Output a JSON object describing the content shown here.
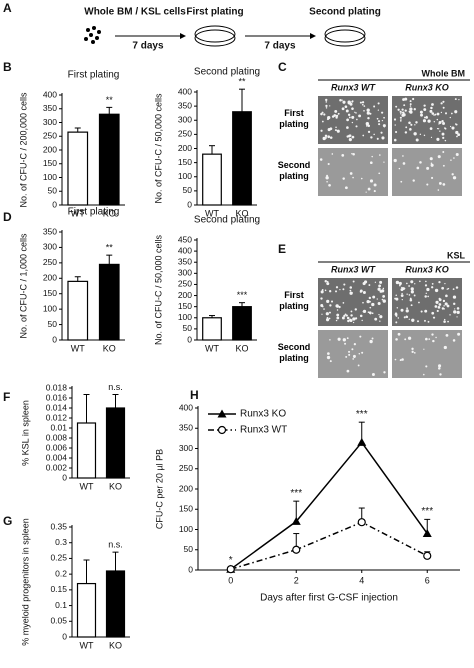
{
  "schema": {
    "label": "A",
    "start": "Whole BM / KSL cells",
    "step1": "7 days",
    "stage1": "First plating",
    "step2": "7 days",
    "stage2": "Second plating"
  },
  "image_panels": [
    {
      "label": "C",
      "title": "Whole BM",
      "columns": [
        "Runx3 WT",
        "Runx3 KO"
      ],
      "rows": [
        "First plating",
        "Second plating"
      ]
    },
    {
      "label": "E",
      "title": "KSL",
      "columns": [
        "Runx3 WT",
        "Runx3 KO"
      ],
      "rows": [
        "First plating",
        "Second plating"
      ]
    }
  ],
  "chart_data": [
    {
      "type": "bar",
      "label": "B",
      "title": "First plating",
      "ylabel": "No. of CFU-C / 200,000 cells",
      "categories": [
        "WT",
        "KO"
      ],
      "values": [
        265,
        330
      ],
      "errors": [
        15,
        25
      ],
      "colors": [
        "#ffffff",
        "#000000"
      ],
      "annotation": "**",
      "ylim": [
        0,
        400
      ],
      "yticks": [
        0,
        50,
        100,
        150,
        200,
        250,
        300,
        350,
        400
      ]
    },
    {
      "type": "bar",
      "title": "Second plating",
      "ylabel": "No. of CFU-C / 50,000 cells",
      "categories": [
        "WT",
        "KO"
      ],
      "values": [
        180,
        330
      ],
      "errors": [
        30,
        80
      ],
      "colors": [
        "#ffffff",
        "#000000"
      ],
      "annotation": "**",
      "ylim": [
        0,
        400
      ],
      "yticks": [
        0,
        50,
        100,
        150,
        200,
        250,
        300,
        350,
        400
      ]
    },
    {
      "type": "bar",
      "label": "D",
      "title": "First plating",
      "ylabel": "No. of CFU-C / 1,000 cells",
      "categories": [
        "WT",
        "KO"
      ],
      "values": [
        190,
        245
      ],
      "errors": [
        15,
        30
      ],
      "colors": [
        "#ffffff",
        "#000000"
      ],
      "annotation": "**",
      "ylim": [
        0,
        350
      ],
      "yticks": [
        0,
        50,
        100,
        150,
        200,
        250,
        300,
        350
      ]
    },
    {
      "type": "bar",
      "title": "Second plating",
      "ylabel": "No. of CFU-C / 50,000 cells",
      "categories": [
        "WT",
        "KO"
      ],
      "values": [
        100,
        150
      ],
      "errors": [
        10,
        18
      ],
      "colors": [
        "#ffffff",
        "#000000"
      ],
      "annotation": "***",
      "ylim": [
        0,
        450
      ],
      "yticks": [
        0,
        50,
        100,
        150,
        200,
        250,
        300,
        350,
        400,
        450
      ]
    },
    {
      "type": "bar",
      "label": "F",
      "ylabel": "% KSL in spleen",
      "categories": [
        "WT",
        "KO"
      ],
      "values": [
        0.011,
        0.014
      ],
      "errors": [
        0.0057,
        0.0027
      ],
      "colors": [
        "#ffffff",
        "#000000"
      ],
      "annotation": "n.s.",
      "ylim": [
        0,
        0.018
      ],
      "yticks": [
        0,
        0.002,
        0.004,
        0.006,
        0.008,
        0.01,
        0.012,
        0.014,
        0.016,
        0.018
      ]
    },
    {
      "type": "bar",
      "label": "G",
      "ylabel": "% myeloid progenitors in spleen",
      "categories": [
        "WT",
        "KO"
      ],
      "values": [
        0.17,
        0.21
      ],
      "errors": [
        0.075,
        0.06
      ],
      "colors": [
        "#ffffff",
        "#000000"
      ],
      "annotation": "n.s.",
      "ylim": [
        0,
        0.35
      ],
      "yticks": [
        0,
        0.05,
        0.1,
        0.15,
        0.2,
        0.25,
        0.3,
        0.35
      ]
    },
    {
      "type": "line",
      "label": "H",
      "ylabel": "CFU-C per 20 µl PB",
      "xlabel": "Days after first G-CSF injection",
      "x": [
        0,
        2,
        4,
        6
      ],
      "xlim": [
        -1,
        7
      ],
      "xticks": [
        0,
        2,
        4,
        6
      ],
      "ylim": [
        0,
        400
      ],
      "yticks": [
        0,
        50,
        100,
        150,
        200,
        250,
        300,
        350,
        400
      ],
      "annotations": [
        "*",
        "***",
        "***",
        "***"
      ],
      "series": [
        {
          "name": "Runx3 KO",
          "color": "#000000",
          "marker": "triangle",
          "dashed": false,
          "values": [
            2,
            120,
            315,
            90
          ],
          "errors": [
            2,
            50,
            50,
            35
          ]
        },
        {
          "name": "Runx3 WT",
          "color": "#000000",
          "marker": "circle",
          "dashed": true,
          "values": [
            2,
            50,
            118,
            35
          ],
          "errors": [
            2,
            40,
            35,
            10
          ]
        }
      ]
    }
  ]
}
